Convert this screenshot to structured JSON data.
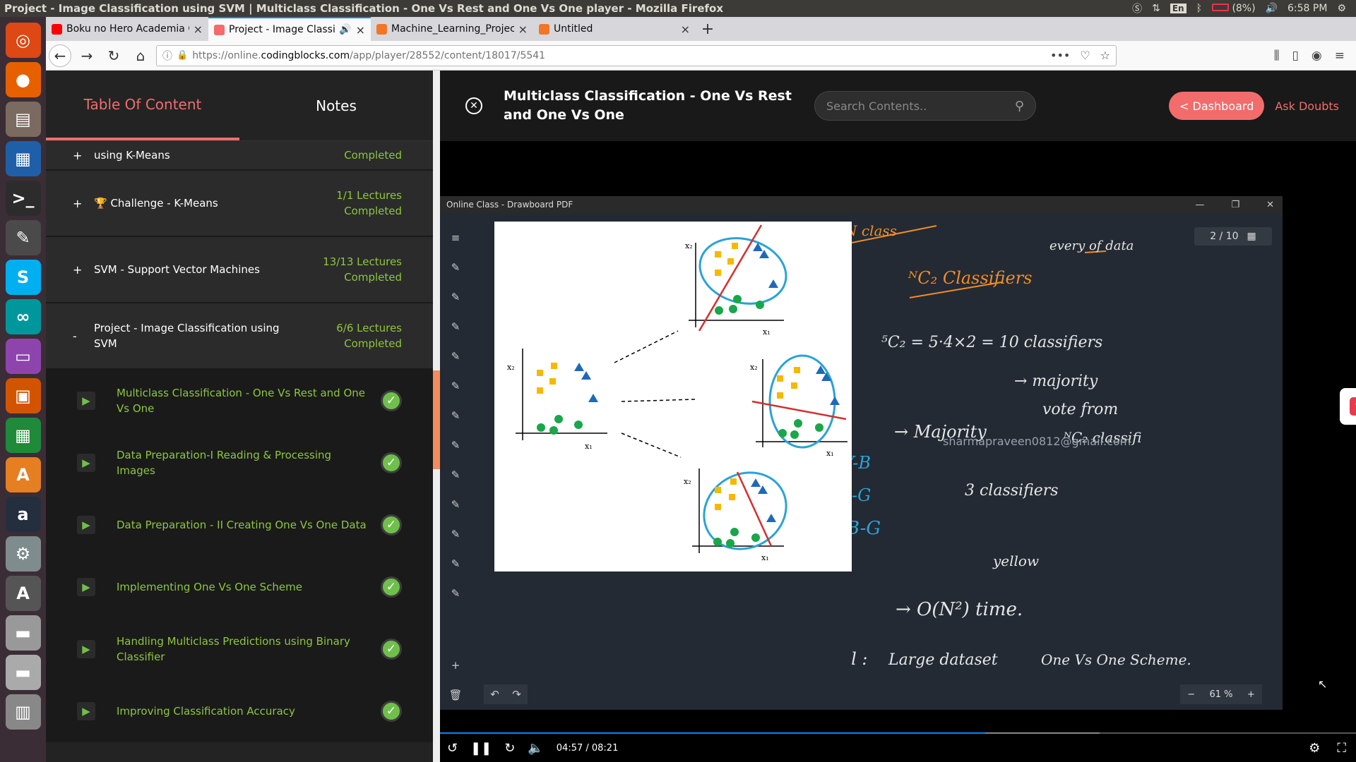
{
  "window_title": "Project - Image Classification using SVM | Multiclass Classification - One Vs Rest and One Vs One player - Mozilla Firefox",
  "tray": {
    "lang": "En",
    "battery": "(8%)",
    "clock": "6:58 PM"
  },
  "launcher": [
    {
      "icon": "ubuntu-dash-icon",
      "glyph": "◎",
      "color": "#dd4814"
    },
    {
      "icon": "firefox-icon",
      "glyph": "●",
      "color": "#e66000"
    },
    {
      "icon": "files-icon",
      "glyph": "▤",
      "color": "#7a6a60"
    },
    {
      "icon": "writer-icon",
      "glyph": "▦",
      "color": "#1f5fa8"
    },
    {
      "icon": "terminal-icon",
      "glyph": ">_",
      "color": "#2c2c2c"
    },
    {
      "icon": "text-editor-icon",
      "glyph": "✎",
      "color": "#4a4a4a"
    },
    {
      "icon": "skype-icon",
      "glyph": "S",
      "color": "#00aff0"
    },
    {
      "icon": "arduino-icon",
      "glyph": "∞",
      "color": "#00979c"
    },
    {
      "icon": "media-icon",
      "glyph": "▭",
      "color": "#8e44ad"
    },
    {
      "icon": "impress-icon",
      "glyph": "▣",
      "color": "#d35400"
    },
    {
      "icon": "calc-icon",
      "glyph": "▦",
      "color": "#1e8a3a"
    },
    {
      "icon": "software-center-icon",
      "glyph": "A",
      "color": "#e67e22"
    },
    {
      "icon": "amazon-icon",
      "glyph": "a",
      "color": "#232f3e"
    },
    {
      "icon": "settings-icon",
      "glyph": "⚙",
      "color": "#7f8c8d"
    },
    {
      "icon": "updater-icon",
      "glyph": "A",
      "color": "#555"
    },
    {
      "icon": "disk-icon",
      "glyph": "▬",
      "color": "#999"
    },
    {
      "icon": "disk2-icon",
      "glyph": "▬",
      "color": "#aaa"
    },
    {
      "icon": "trash-icon",
      "glyph": "▥",
      "color": "#888"
    }
  ],
  "tabs": [
    {
      "label": "Boku no Hero Academia C",
      "fav_color": "#ff0000",
      "active": false
    },
    {
      "label": "Project - Image Classifi",
      "fav_color": "#f26c6c",
      "active": true
    },
    {
      "label": "Machine_Learning_Project",
      "fav_color": "#f37626",
      "active": false
    },
    {
      "label": "Untitled",
      "fav_color": "#f37626",
      "active": false
    }
  ],
  "url": {
    "prefix": "https://online.",
    "host": "codingblocks.com",
    "path": "/app/player/28552/content/18017/5541"
  },
  "sidebar": {
    "tab_toc": "Table Of Content",
    "tab_notes": "Notes",
    "sections": [
      {
        "pm": "+",
        "name": "using K-Means",
        "stat": "Completed",
        "h": 42
      },
      {
        "pm": "+",
        "name": "🏆 Challenge - K-Means",
        "stat": "1/1 Lectures Completed",
        "h": 94
      },
      {
        "pm": "+",
        "name": "SVM - Support Vector Machines",
        "stat": "13/13 Lectures Completed",
        "h": 94
      },
      {
        "pm": "-",
        "name": "Project - Image Classification using SVM",
        "stat": "6/6 Lectures Completed",
        "h": 94
      }
    ],
    "lectures": [
      "Multiclass Classification - One Vs Rest and One Vs One",
      "Data Preparation-I Reading & Processing Images",
      "Data Preparation - II Creating One Vs One Data",
      "Implementing One Vs One Scheme",
      "Handling Multiclass Predictions using Binary Classifier",
      "Improving Classification Accuracy"
    ]
  },
  "header": {
    "title": "Multiclass Classification - One Vs Rest and One Vs One",
    "search_placeholder": "Search Contents..",
    "dashboard": "< Dashboard",
    "ask": "Ask Doubts"
  },
  "player": {
    "window_title": "Online Class - Drawboard PDF",
    "page": "2 / 10",
    "zoom": "61 %",
    "watermark": "sharmapraveen0812@gmail.com",
    "slide_labels": {
      "x1": "x₁",
      "x2": "x₂"
    },
    "time": "04:57 / 08:21",
    "progress": 0.595
  },
  "handwriting": [
    "N class",
    "ᴺC₂ Classifiers",
    "every of data",
    "⁵C₂ = 5·4×2 = 10 classifiers",
    "→ majority",
    "vote from",
    "ᴺC₂ classifi",
    "→ Majority",
    "Y-B",
    "-G",
    "B-G",
    "3 classifiers",
    "yellow",
    "→ O(N²) time.",
    "Useful :",
    "Large dataset",
    "One Vs One Scheme."
  ]
}
